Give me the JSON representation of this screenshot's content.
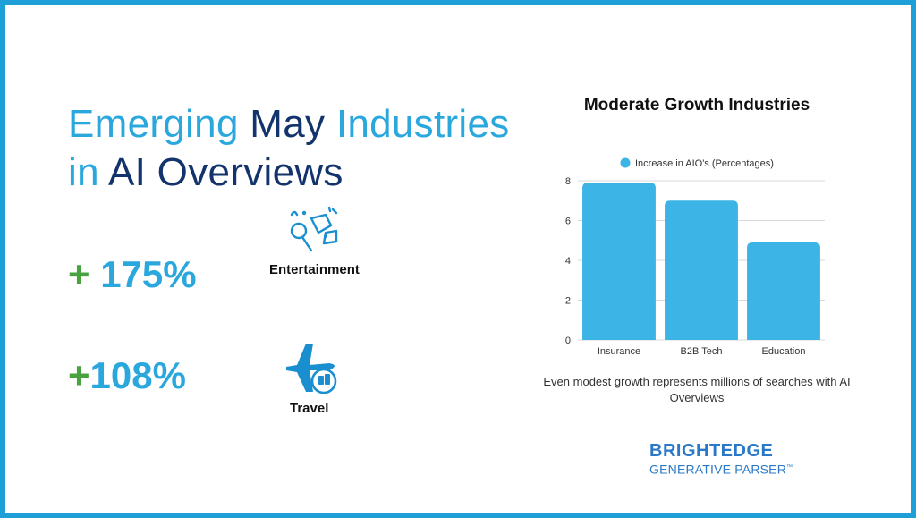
{
  "headline": {
    "part1": "Emerging",
    "part2": "May",
    "part3": "Industries",
    "part4": "in",
    "part5": "AI Overviews"
  },
  "stats": [
    {
      "plus": "+",
      "value": " 175%",
      "label": "Entertainment",
      "icon": "entertainment-icon"
    },
    {
      "plus": "+",
      "value": "108%",
      "label": "Travel",
      "icon": "airplane-hotel-icon"
    }
  ],
  "colors": {
    "accent": "#2aa8de",
    "navy": "#12336b",
    "green": "#48a23f",
    "bar": "#3cb4e5",
    "frame": "#1e9fd8",
    "brand": "#2a78c8"
  },
  "chart_data": {
    "type": "bar",
    "title": "Moderate Growth Industries",
    "categories": [
      "Insurance",
      "B2B Tech",
      "Education"
    ],
    "series": [
      {
        "name": "Increase in AIO's (Percentages)",
        "values": [
          7.9,
          7.0,
          4.9
        ]
      }
    ],
    "ylim": [
      0,
      8
    ],
    "yticks": [
      0,
      2,
      4,
      6,
      8
    ],
    "grid": true,
    "legend": "top"
  },
  "caption": "Even modest growth represents millions of searches with AI Overviews",
  "brand": {
    "name": "BRIGHTEDGE",
    "sub": "GENERATIVE PARSER",
    "tm": "™"
  }
}
